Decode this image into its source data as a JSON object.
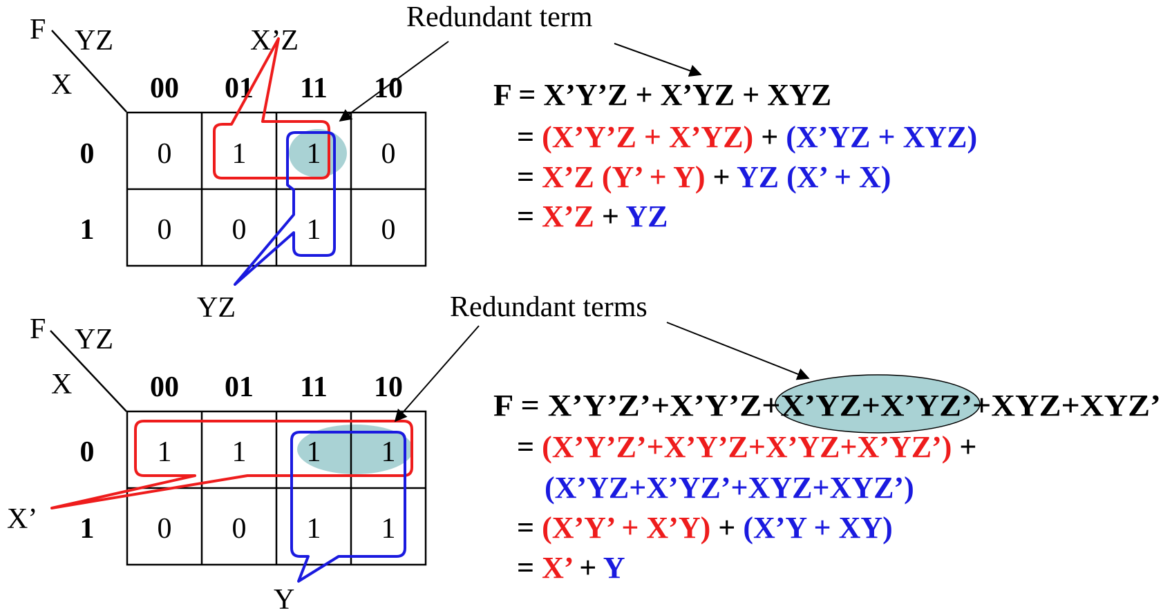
{
  "colors": {
    "red": "#ee1c1c",
    "blue": "#1a1adf",
    "black": "#000000",
    "teal": "#a9d2d4"
  },
  "top": {
    "func_label": "F",
    "col_var": "YZ",
    "row_var": "X",
    "col_headers": [
      "00",
      "01",
      "11",
      "10"
    ],
    "row_headers": [
      "0",
      "1"
    ],
    "cells": [
      [
        "0",
        "1",
        "1",
        "0"
      ],
      [
        "0",
        "0",
        "1",
        "0"
      ]
    ],
    "group_label_red": "X’Z",
    "group_label_blue": "YZ",
    "redundant_label": "Redundant term",
    "equations": [
      [
        {
          "t": "F = X’Y’Z + X’YZ + XYZ",
          "c": "black"
        }
      ],
      [
        {
          "t": "= ",
          "c": "black"
        },
        {
          "t": "(X’Y’Z + X’YZ)",
          "c": "red"
        },
        {
          "t": " + ",
          "c": "black"
        },
        {
          "t": "(X’YZ + XYZ)",
          "c": "blue"
        }
      ],
      [
        {
          "t": "= ",
          "c": "black"
        },
        {
          "t": "X’Z (Y’ + Y)",
          "c": "red"
        },
        {
          "t": " + ",
          "c": "black"
        },
        {
          "t": "YZ (X’ + X)",
          "c": "blue"
        }
      ],
      [
        {
          "t": "= ",
          "c": "black"
        },
        {
          "t": "X’Z",
          "c": "red"
        },
        {
          "t": " + ",
          "c": "black"
        },
        {
          "t": "YZ",
          "c": "blue"
        }
      ]
    ]
  },
  "bottom": {
    "func_label": "F",
    "col_var": "YZ",
    "row_var": "X",
    "col_headers": [
      "00",
      "01",
      "11",
      "10"
    ],
    "row_headers": [
      "0",
      "1"
    ],
    "cells": [
      [
        "1",
        "1",
        "1",
        "1"
      ],
      [
        "0",
        "0",
        "1",
        "1"
      ]
    ],
    "group_label_red": "X’",
    "group_label_blue": "Y",
    "redundant_label": "Redundant terms",
    "equations": [
      [
        {
          "t": "F = X’Y’Z’+X’Y’Z+X’YZ+X’YZ’+XYZ+XYZ’",
          "c": "black"
        }
      ],
      [
        {
          "t": "= ",
          "c": "black"
        },
        {
          "t": "(X’Y’Z’+X’Y’Z+X’YZ+X’YZ’)",
          "c": "red"
        },
        {
          "t": " +",
          "c": "black"
        }
      ],
      [
        {
          "t": "(X’YZ+X’YZ’+XYZ+XYZ’)",
          "c": "blue"
        }
      ],
      [
        {
          "t": "= ",
          "c": "black"
        },
        {
          "t": "(X’Y’ + X’Y)",
          "c": "red"
        },
        {
          "t": " + ",
          "c": "black"
        },
        {
          "t": "(X’Y + XY)",
          "c": "blue"
        }
      ],
      [
        {
          "t": "= ",
          "c": "black"
        },
        {
          "t": "X’",
          "c": "red"
        },
        {
          "t": " + ",
          "c": "black"
        },
        {
          "t": "Y",
          "c": "blue"
        }
      ]
    ]
  }
}
